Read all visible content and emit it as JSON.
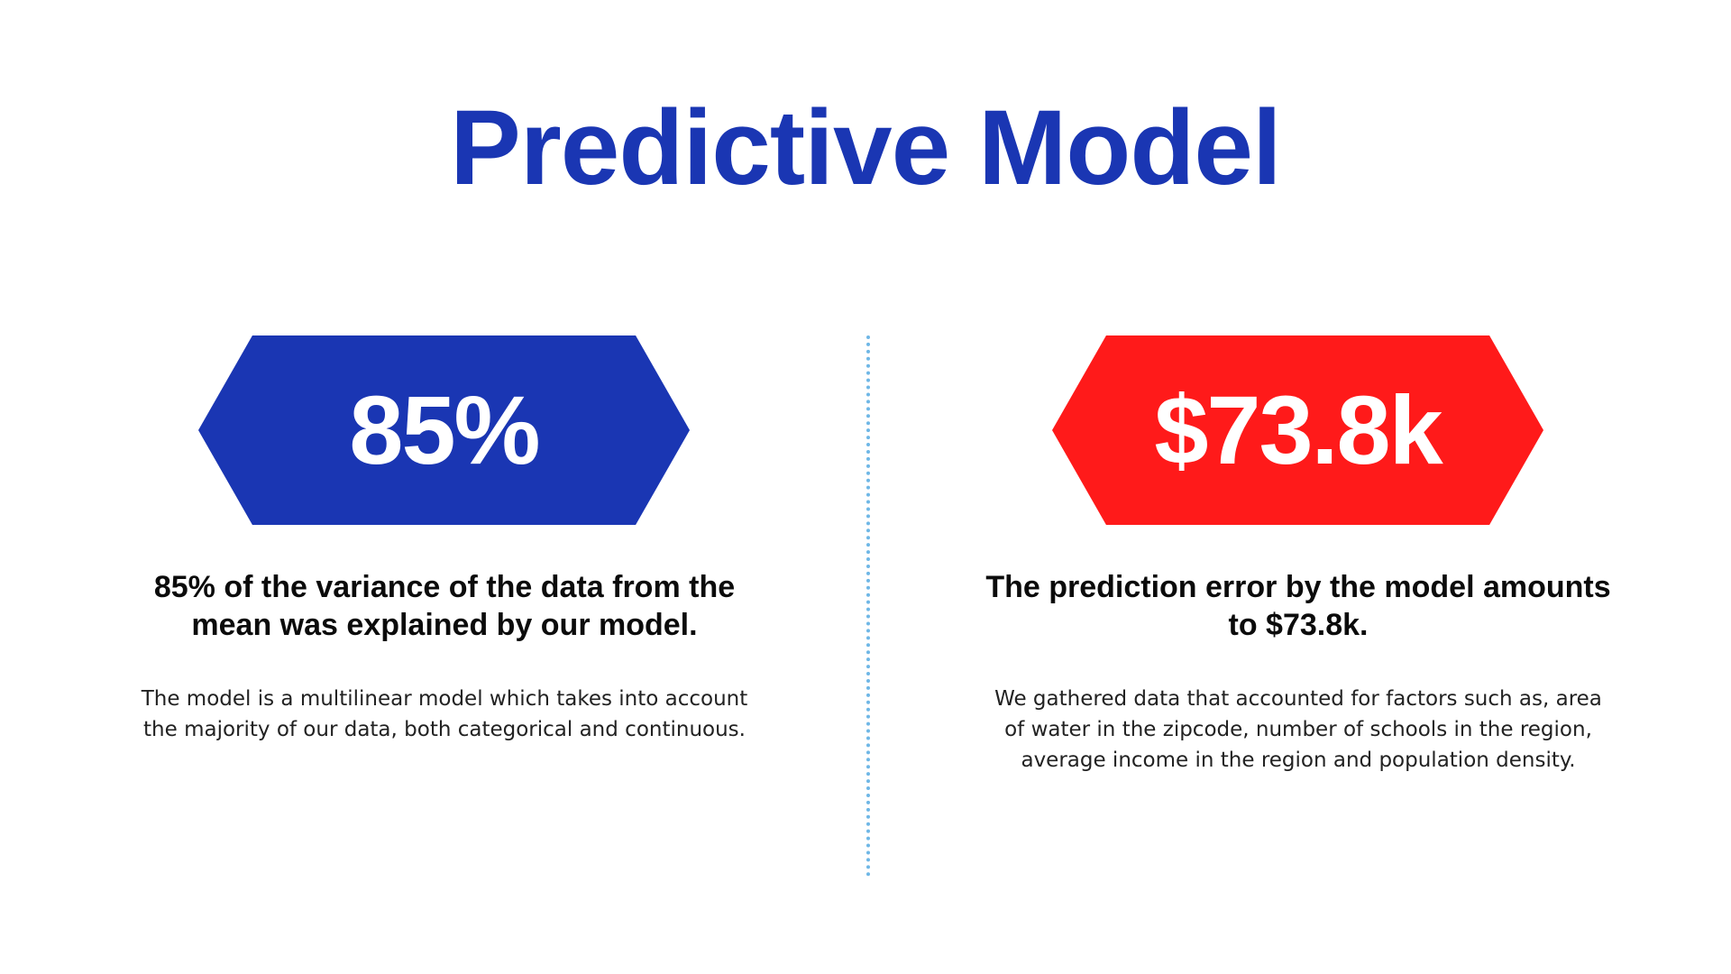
{
  "slide": {
    "title": "Predictive Model",
    "colors": {
      "title": "#1a36b3",
      "hex_left": "#1a36b3",
      "hex_right": "#ff1a1a",
      "divider": "#6fb7e6"
    },
    "left": {
      "value": "85%",
      "headline": "85% of the variance of the data from the mean was explained by our model.",
      "body": "The model is a multilinear model which takes into account the majority of our data, both categorical and continuous."
    },
    "right": {
      "value": "$73.8k",
      "headline": "The prediction error by the model amounts to $73.8k.",
      "body": "We gathered data that accounted for factors such as, area of water in the zipcode, number of schools in the region, average income in the region and population density."
    }
  }
}
